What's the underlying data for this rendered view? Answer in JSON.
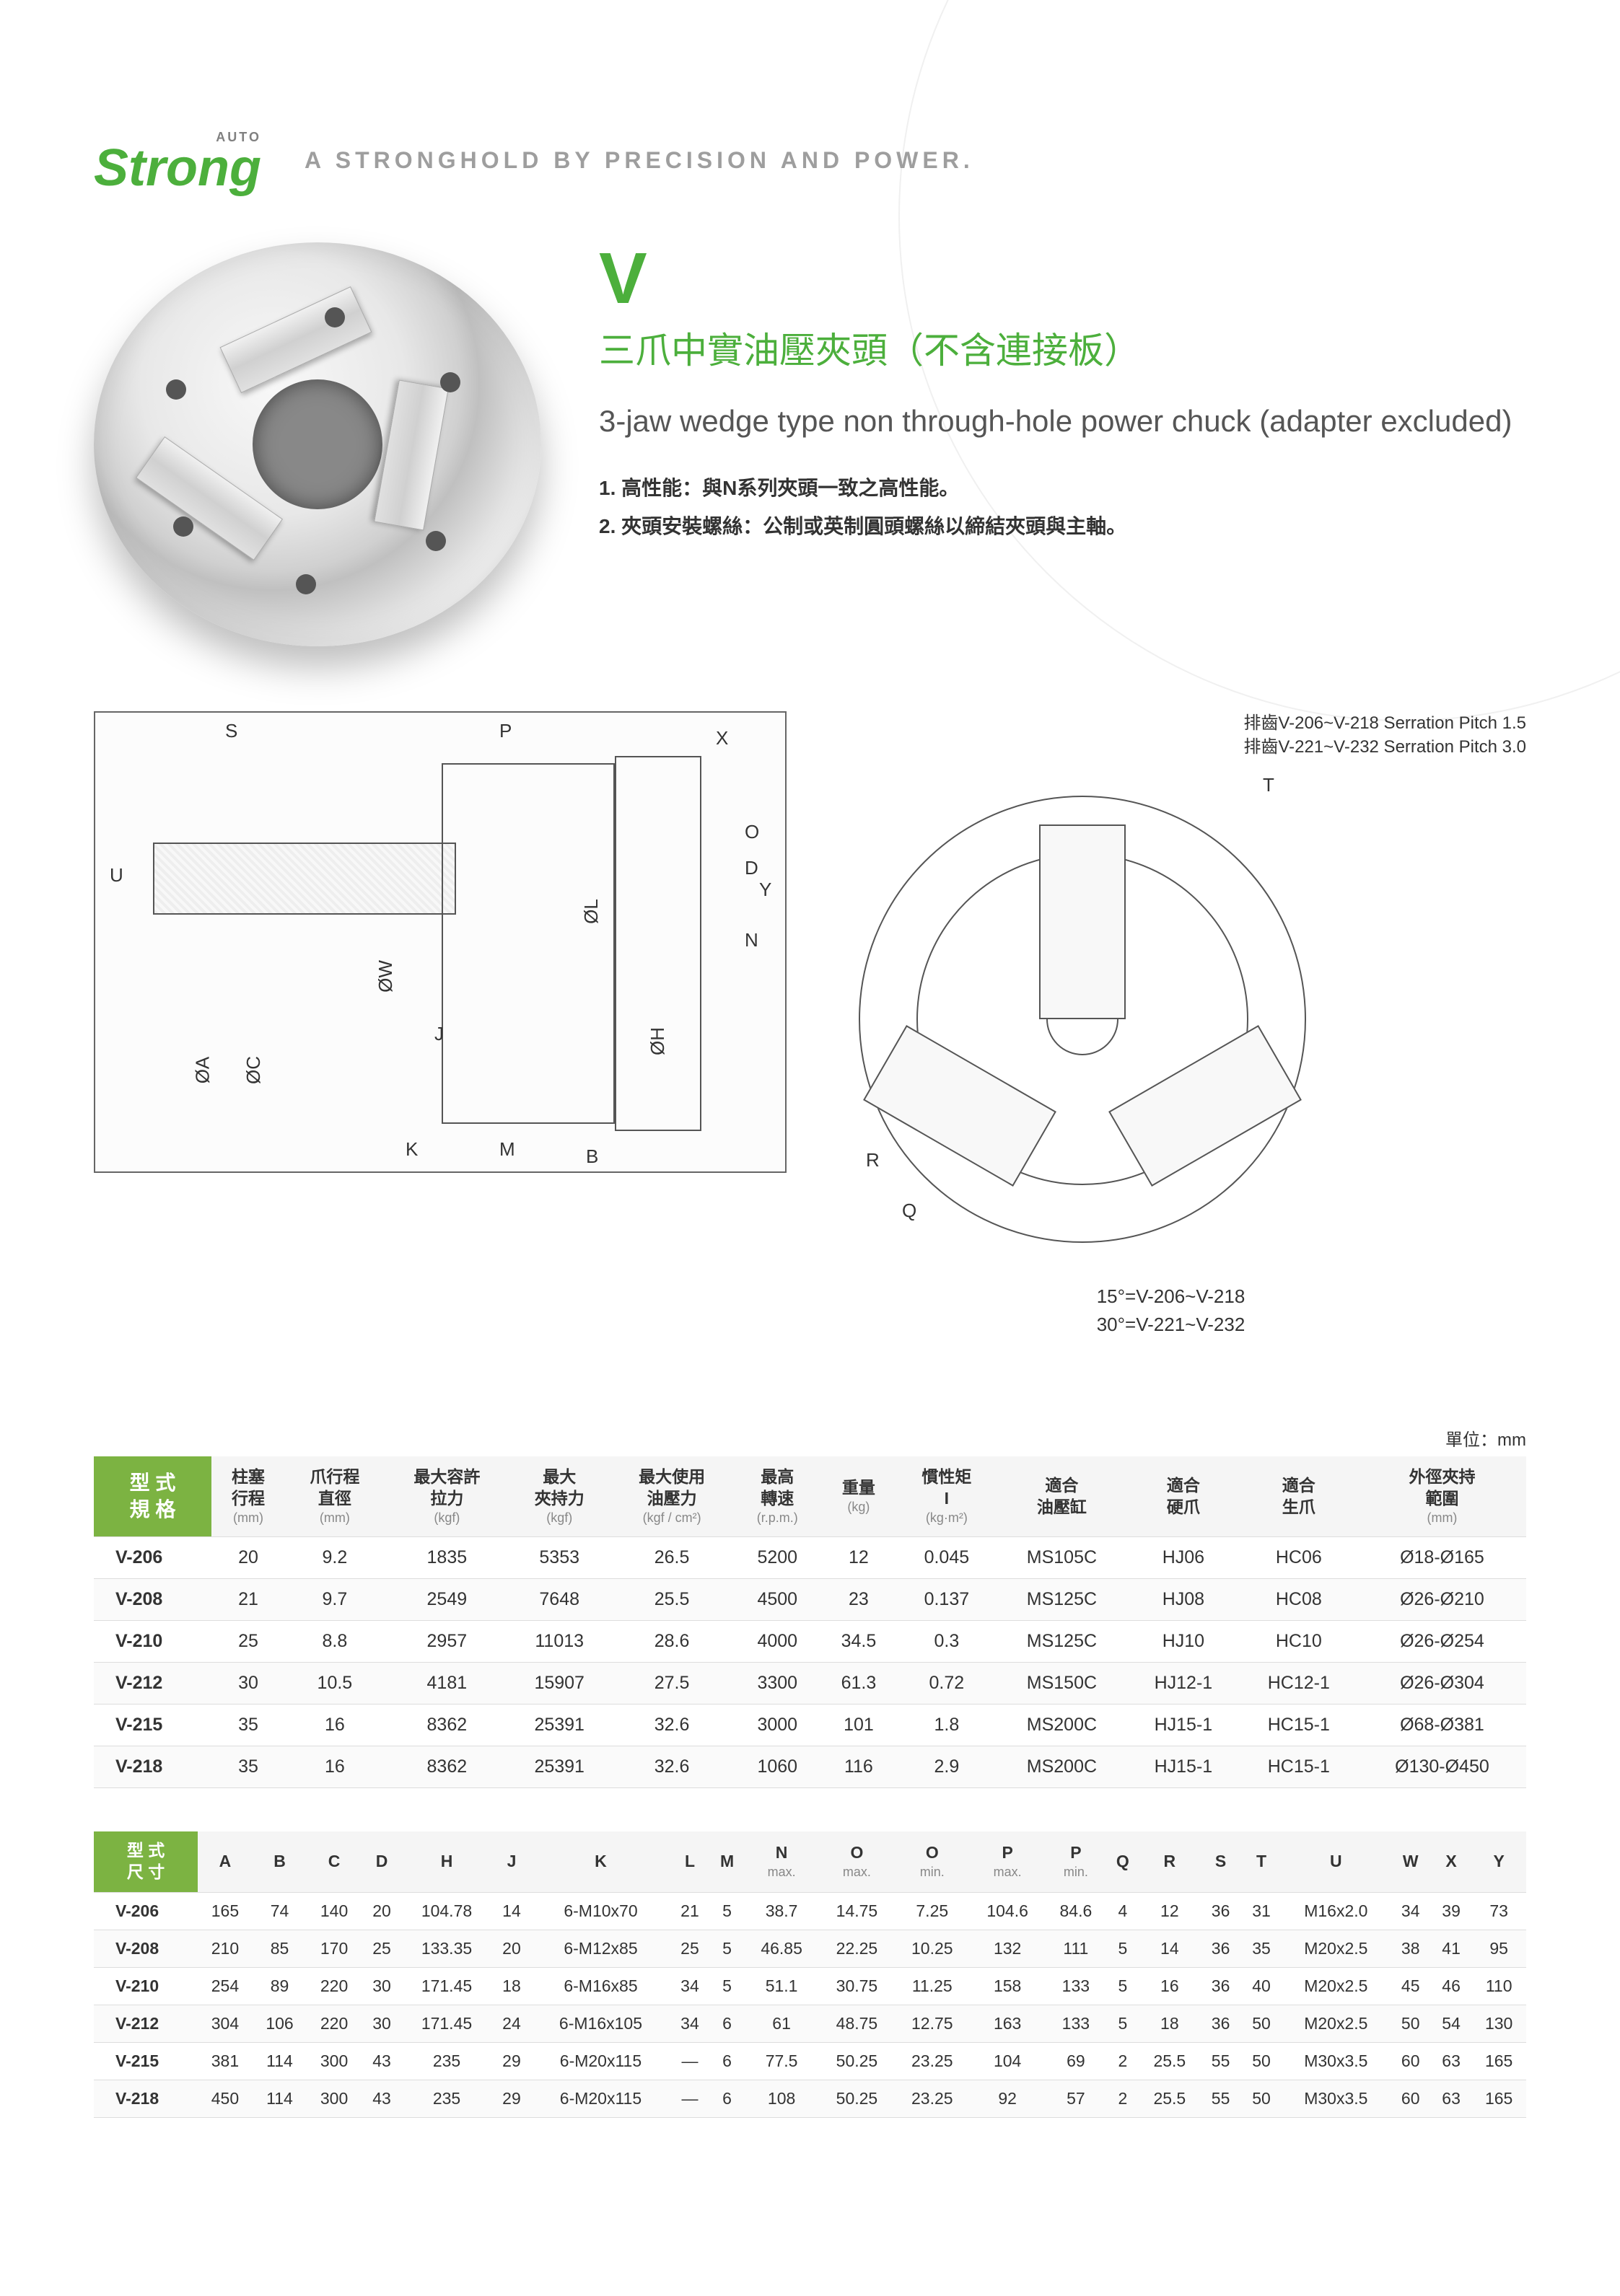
{
  "logo": {
    "auto": "AUTO",
    "main": "Strong"
  },
  "tagline": "A STRONGHOLD BY PRECISION AND POWER.",
  "model_letter": "V",
  "title_cn": "三爪中實油壓夾頭（不含連接板）",
  "title_en": "3-jaw wedge type non through-hole power chuck (adapter excluded)",
  "features": [
    "1. 高性能：與N系列夾頭一致之高性能。",
    "2. 夾頭安裝螺絲：公制或英制圓頭螺絲以締結夾頭與主軸。"
  ],
  "serration_lines": [
    "排齒V-206~V-218 Serration Pitch 1.5",
    "排齒V-221~V-232 Serration Pitch 3.0"
  ],
  "front_labels": [
    "15°=V-206~V-218",
    "30°=V-221~V-232"
  ],
  "dim_labels_side": [
    "S",
    "P",
    "U",
    "ØA",
    "ØC",
    "ØW",
    "J",
    "K",
    "M",
    "B",
    "ØL",
    "ØH",
    "X",
    "O",
    "D",
    "Y",
    "N"
  ],
  "dim_labels_front": [
    "T",
    "R",
    "Q"
  ],
  "unit_label": "單位：mm",
  "table1": {
    "head_model": "型 式\n規 格",
    "columns": [
      {
        "h": "柱塞\n行程",
        "sub": "(mm)"
      },
      {
        "h": "爪行程\n直徑",
        "sub": "(mm)"
      },
      {
        "h": "最大容許\n拉力",
        "sub": "(kgf)"
      },
      {
        "h": "最大\n夾持力",
        "sub": "(kgf)"
      },
      {
        "h": "最大使用\n油壓力",
        "sub": "(kgf / cm²)"
      },
      {
        "h": "最高\n轉速",
        "sub": "(r.p.m.)"
      },
      {
        "h": "重量",
        "sub": "(kg)"
      },
      {
        "h": "慣性矩\nI",
        "sub": "(kg·m²)"
      },
      {
        "h": "適合\n油壓缸",
        "sub": ""
      },
      {
        "h": "適合\n硬爪",
        "sub": ""
      },
      {
        "h": "適合\n生爪",
        "sub": ""
      },
      {
        "h": "外徑夾持\n範圍",
        "sub": "(mm)"
      }
    ],
    "rows": [
      [
        "V-206",
        "20",
        "9.2",
        "1835",
        "5353",
        "26.5",
        "5200",
        "12",
        "0.045",
        "MS105C",
        "HJ06",
        "HC06",
        "Ø18-Ø165"
      ],
      [
        "V-208",
        "21",
        "9.7",
        "2549",
        "7648",
        "25.5",
        "4500",
        "23",
        "0.137",
        "MS125C",
        "HJ08",
        "HC08",
        "Ø26-Ø210"
      ],
      [
        "V-210",
        "25",
        "8.8",
        "2957",
        "11013",
        "28.6",
        "4000",
        "34.5",
        "0.3",
        "MS125C",
        "HJ10",
        "HC10",
        "Ø26-Ø254"
      ],
      [
        "V-212",
        "30",
        "10.5",
        "4181",
        "15907",
        "27.5",
        "3300",
        "61.3",
        "0.72",
        "MS150C",
        "HJ12-1",
        "HC12-1",
        "Ø26-Ø304"
      ],
      [
        "V-215",
        "35",
        "16",
        "8362",
        "25391",
        "32.6",
        "3000",
        "101",
        "1.8",
        "MS200C",
        "HJ15-1",
        "HC15-1",
        "Ø68-Ø381"
      ],
      [
        "V-218",
        "35",
        "16",
        "8362",
        "25391",
        "32.6",
        "1060",
        "116",
        "2.9",
        "MS200C",
        "HJ15-1",
        "HC15-1",
        "Ø130-Ø450"
      ]
    ]
  },
  "table2": {
    "head_model": "型 式\n尺 寸",
    "columns": [
      "A",
      "B",
      "C",
      "D",
      "H",
      "J",
      "K",
      "L",
      "M",
      "N",
      "O",
      "O",
      "P",
      "P",
      "Q",
      "R",
      "S",
      "T",
      "U",
      "W",
      "X",
      "Y"
    ],
    "subcols": [
      "",
      "",
      "",
      "",
      "",
      "",
      "",
      "",
      "",
      "max.",
      "max.",
      "min.",
      "max.",
      "min.",
      "",
      "",
      "",
      "",
      "",
      "",
      "",
      ""
    ],
    "rows": [
      [
        "V-206",
        "165",
        "74",
        "140",
        "20",
        "104.78",
        "14",
        "6-M10x70",
        "21",
        "5",
        "38.7",
        "14.75",
        "7.25",
        "104.6",
        "84.6",
        "4",
        "12",
        "36",
        "31",
        "M16x2.0",
        "34",
        "39",
        "73"
      ],
      [
        "V-208",
        "210",
        "85",
        "170",
        "25",
        "133.35",
        "20",
        "6-M12x85",
        "25",
        "5",
        "46.85",
        "22.25",
        "10.25",
        "132",
        "111",
        "5",
        "14",
        "36",
        "35",
        "M20x2.5",
        "38",
        "41",
        "95"
      ],
      [
        "V-210",
        "254",
        "89",
        "220",
        "30",
        "171.45",
        "18",
        "6-M16x85",
        "34",
        "5",
        "51.1",
        "30.75",
        "11.25",
        "158",
        "133",
        "5",
        "16",
        "36",
        "40",
        "M20x2.5",
        "45",
        "46",
        "110"
      ],
      [
        "V-212",
        "304",
        "106",
        "220",
        "30",
        "171.45",
        "24",
        "6-M16x105",
        "34",
        "6",
        "61",
        "48.75",
        "12.75",
        "163",
        "133",
        "5",
        "18",
        "36",
        "50",
        "M20x2.5",
        "50",
        "54",
        "130"
      ],
      [
        "V-215",
        "381",
        "114",
        "300",
        "43",
        "235",
        "29",
        "6-M20x115",
        "—",
        "6",
        "77.5",
        "50.25",
        "23.25",
        "104",
        "69",
        "2",
        "25.5",
        "55",
        "50",
        "M30x3.5",
        "60",
        "63",
        "165"
      ],
      [
        "V-218",
        "450",
        "114",
        "300",
        "43",
        "235",
        "29",
        "6-M20x115",
        "—",
        "6",
        "108",
        "50.25",
        "23.25",
        "92",
        "57",
        "2",
        "25.5",
        "55",
        "50",
        "M30x3.5",
        "60",
        "63",
        "165"
      ]
    ]
  },
  "colors": {
    "brand_green": "#4caf3c",
    "header_green": "#7cb342",
    "grey_text": "#9e9e9e",
    "border": "#dddddd"
  }
}
